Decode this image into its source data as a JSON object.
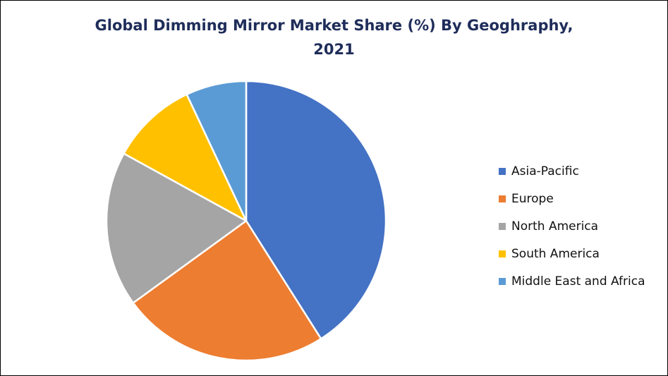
{
  "chart_data": {
    "type": "pie",
    "title_lines": [
      "Global Dimming Mirror Market Share (%) By Geoghraphy,",
      "2021"
    ],
    "legend_position": "right",
    "categories": [
      "Asia-Pacific",
      "Europe",
      "North America",
      "South America",
      "Middle East and Africa"
    ],
    "values": [
      41,
      24,
      18,
      10,
      7
    ],
    "value_unit": "%",
    "colors": [
      "#4472C4",
      "#ED7D31",
      "#A5A5A5",
      "#FFC000",
      "#5B9BD5"
    ],
    "start_angle": "12 o'clock",
    "direction": "clockwise"
  }
}
